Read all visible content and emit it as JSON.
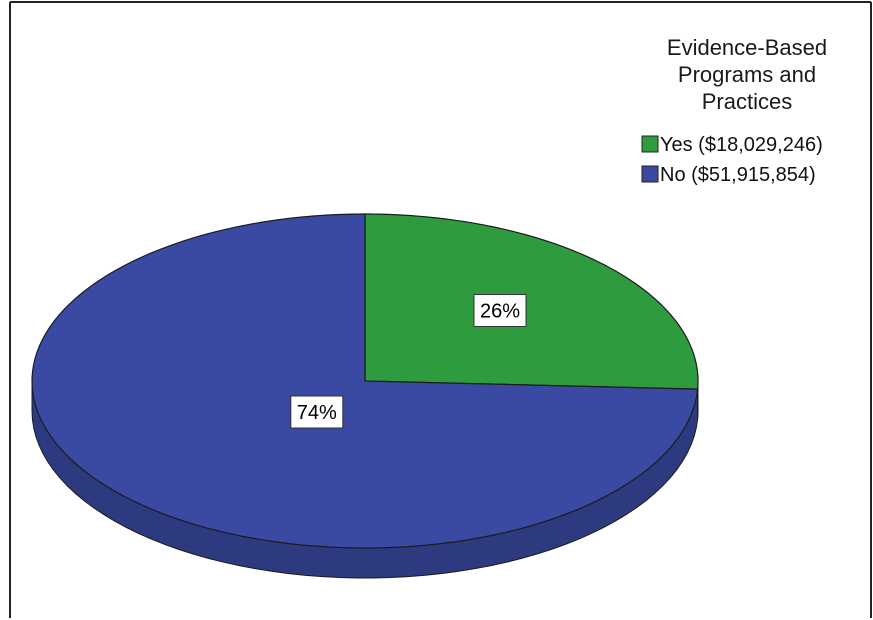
{
  "chart_data": {
    "type": "pie",
    "legend_title": [
      "Evidence-Based",
      "Programs and",
      "Practices"
    ],
    "legend_position": "top-right",
    "slices": [
      {
        "label": "Yes ($18,029,246)",
        "value": 18029246,
        "percent_label": "26%",
        "color": "#2e9c3e"
      },
      {
        "label": "No ($51,915,854)",
        "value": 51915854,
        "percent_label": "74%",
        "color": "#3a4aa3"
      }
    ]
  }
}
